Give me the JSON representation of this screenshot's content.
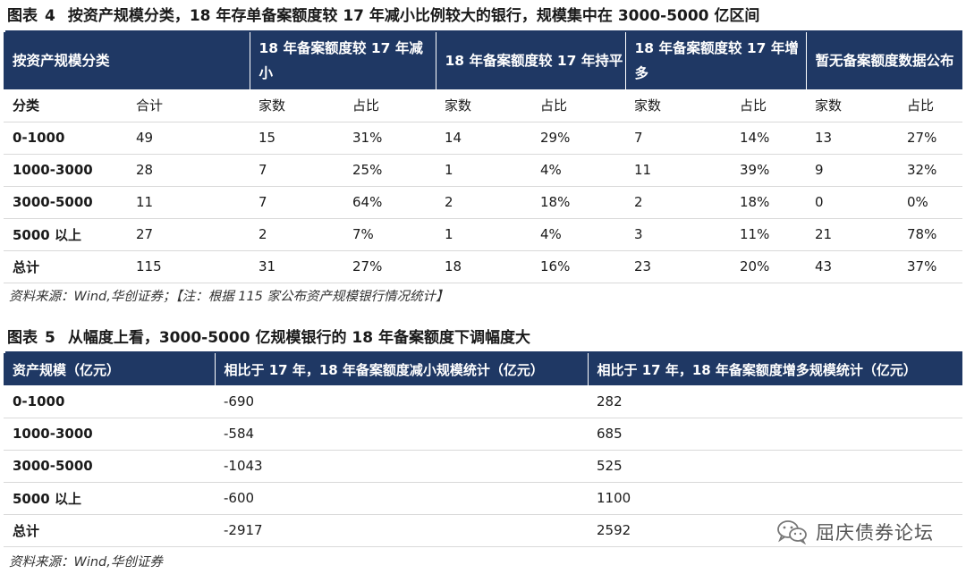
{
  "fig4": {
    "label": "图表",
    "number": "4",
    "title": "按资产规模分类，18 年存单备案额度较 17 年减小比例较大的银行，规模集中在 3000-5000 亿区间",
    "group_headers": [
      "按资产规模分类",
      "18 年备案额度较 17 年减小",
      "18 年备案额度较 17 年持平",
      "18 年备案额度较 17 年增多",
      "暂无备案额度数据公布"
    ],
    "sub_headers": [
      "分类",
      "合计",
      "家数",
      "占比",
      "家数",
      "占比",
      "家数",
      "占比",
      "家数",
      "占比"
    ],
    "rows": [
      [
        "0-1000",
        "49",
        "15",
        "31%",
        "14",
        "29%",
        "7",
        "14%",
        "13",
        "27%"
      ],
      [
        "1000-3000",
        "28",
        "7",
        "25%",
        "1",
        "4%",
        "11",
        "39%",
        "9",
        "32%"
      ],
      [
        "3000-5000",
        "11",
        "7",
        "64%",
        "2",
        "18%",
        "2",
        "18%",
        "0",
        "0%"
      ],
      [
        "5000 以上",
        "27",
        "2",
        "7%",
        "1",
        "4%",
        "3",
        "11%",
        "21",
        "78%"
      ],
      [
        "总计",
        "115",
        "31",
        "27%",
        "18",
        "16%",
        "23",
        "20%",
        "43",
        "37%"
      ]
    ],
    "source": "资料来源：Wind,华创证券；【注：根据 115 家公布资产规模银行情况统计】"
  },
  "fig5": {
    "label": "图表",
    "number": "5",
    "title": "从幅度上看，3000-5000 亿规模银行的 18 年备案额度下调幅度大",
    "headers": [
      "资产规模（亿元）",
      "相比于 17 年，18 年备案额度减小规模统计（亿元）",
      "相比于 17 年，18 年备案额度增多规模统计（亿元）"
    ],
    "rows": [
      [
        "0-1000",
        "-690",
        "282"
      ],
      [
        "1000-3000",
        "-584",
        "685"
      ],
      [
        "3000-5000",
        "-1043",
        "525"
      ],
      [
        "5000 以上",
        "-600",
        "1100"
      ],
      [
        "总计",
        "-2917",
        "2592"
      ]
    ],
    "source": "资料来源：Wind,华创证券"
  },
  "watermark": {
    "text": "屈庆债券论坛",
    "icon": "wechat-icon"
  }
}
